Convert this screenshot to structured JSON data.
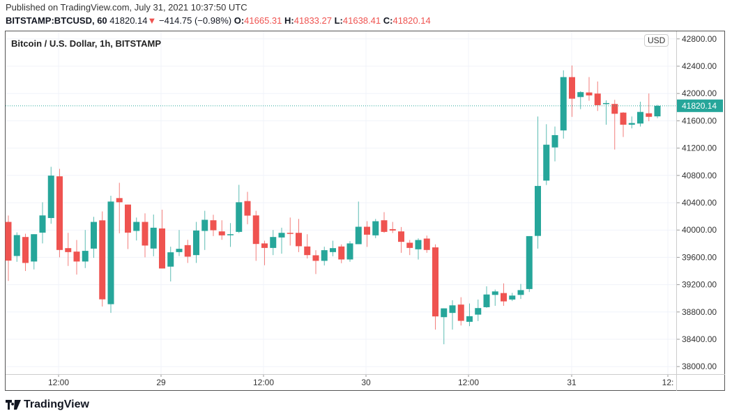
{
  "header": {
    "published": "Published on TradingView.com, July 31, 2021 10:37:50 UTC",
    "symbol": "BITSTAMP:BTCUSD, 60",
    "last": "41820.14",
    "change": "−414.75 (−0.98%)",
    "o_label": "O:",
    "o": "41665.31",
    "h_label": "H:",
    "h": "41833.27",
    "l_label": "L:",
    "l": "41638.41",
    "c_label": "C:",
    "c": "41820.14"
  },
  "chart_title": "Bitcoin / U.S. Dollar, 1h, BITSTAMP",
  "currency": "USD",
  "brand": "TradingView",
  "colors": {
    "up": "#26a69a",
    "down": "#ef5350",
    "last_price": "#26a69a"
  },
  "chart_data": {
    "type": "candlestick",
    "interval": "1h",
    "ylim": [
      37900,
      42900
    ],
    "y_ticks": [
      "42800.00",
      "42400.00",
      "42000.00",
      "41600.00",
      "41200.00",
      "40800.00",
      "40400.00",
      "40000.00",
      "39600.00",
      "39200.00",
      "38800.00",
      "38400.00",
      "38000.00"
    ],
    "x_ticks": [
      "12:00",
      "29",
      "12:00",
      "30",
      "12:00",
      "31",
      "12:"
    ],
    "last_price_label": "41820.14",
    "grid": true,
    "ohlc": [
      [
        40119,
        40213,
        39254,
        39552
      ],
      [
        39620,
        39966,
        39535,
        39926
      ],
      [
        39898,
        39946,
        39400,
        39518
      ],
      [
        39539,
        39939,
        39423,
        39939
      ],
      [
        39962,
        40407,
        39804,
        40214
      ],
      [
        40176,
        40926,
        40092,
        40797
      ],
      [
        40787,
        40896,
        39600,
        39708
      ],
      [
        39735,
        39959,
        39474,
        39677
      ],
      [
        39684,
        39854,
        39348,
        39539
      ],
      [
        39539,
        40000,
        39443,
        39695
      ],
      [
        39728,
        40193,
        39593,
        40119
      ],
      [
        40142,
        40272,
        38880,
        38985
      ],
      [
        38914,
        40502,
        38786,
        40417
      ],
      [
        40468,
        40692,
        39952,
        40407
      ],
      [
        40373,
        40373,
        39722,
        39962
      ],
      [
        39987,
        40183,
        39847,
        40119
      ],
      [
        40119,
        40244,
        39600,
        39773
      ],
      [
        39729,
        40227,
        39616,
        40034
      ],
      [
        40023,
        40298,
        39437,
        39437
      ],
      [
        39464,
        39756,
        39247,
        39674
      ],
      [
        39677,
        40000,
        39620,
        39725
      ],
      [
        39779,
        39857,
        39518,
        39610
      ],
      [
        39633,
        40119,
        39518,
        39993
      ],
      [
        39987,
        40282,
        39708,
        40150
      ],
      [
        40143,
        40224,
        39911,
        39997
      ],
      [
        39980,
        40143,
        39857,
        39922
      ],
      [
        39926,
        40102,
        39753,
        39939
      ],
      [
        39973,
        40662,
        39956,
        40407
      ],
      [
        40424,
        40560,
        40085,
        40211
      ],
      [
        40214,
        40282,
        39549,
        39796
      ],
      [
        39804,
        39844,
        39484,
        39738
      ],
      [
        39738,
        40000,
        39633,
        39898
      ],
      [
        39891,
        40034,
        39654,
        39959
      ],
      [
        39959,
        40183,
        39773,
        39949
      ],
      [
        39959,
        40163,
        39677,
        39763
      ],
      [
        39759,
        39939,
        39583,
        39633
      ],
      [
        39630,
        39705,
        39355,
        39549
      ],
      [
        39549,
        39756,
        39481,
        39705
      ],
      [
        39677,
        39844,
        39616,
        39735
      ],
      [
        39759,
        39790,
        39514,
        39569
      ],
      [
        39569,
        39837,
        39535,
        39804
      ],
      [
        39793,
        40417,
        39793,
        40048
      ],
      [
        40048,
        40129,
        39753,
        39932
      ],
      [
        39922,
        40163,
        39881,
        40129
      ],
      [
        40143,
        40262,
        39959,
        39973
      ],
      [
        40013,
        40119,
        39956,
        39993
      ],
      [
        39980,
        40044,
        39667,
        39827
      ],
      [
        39814,
        39854,
        39633,
        39738
      ],
      [
        39718,
        39878,
        39569,
        39854
      ],
      [
        39875,
        39919,
        39667,
        39708
      ],
      [
        39746,
        39790,
        38541,
        38735
      ],
      [
        38724,
        38853,
        38327,
        38853
      ],
      [
        38786,
        38972,
        38541,
        38897
      ],
      [
        38908,
        39016,
        38602,
        38670
      ],
      [
        38656,
        38924,
        38592,
        38738
      ],
      [
        38761,
        38982,
        38667,
        38857
      ],
      [
        38870,
        39175,
        38860,
        39056
      ],
      [
        39050,
        39128,
        38890,
        39101
      ],
      [
        39077,
        39219,
        38890,
        38955
      ],
      [
        38982,
        39080,
        38960,
        39040
      ],
      [
        39050,
        39210,
        38990,
        39120
      ],
      [
        39136,
        39911,
        39092,
        39911
      ],
      [
        39914,
        41663,
        39728,
        40646
      ],
      [
        40724,
        41550,
        40659,
        41250
      ],
      [
        41210,
        41516,
        41006,
        41390
      ],
      [
        41459,
        42339,
        41339,
        42240
      ],
      [
        42240,
        42410,
        41658,
        41924
      ],
      [
        41948,
        42033,
        41771,
        42020
      ],
      [
        42015,
        42240,
        41893,
        41972
      ],
      [
        41999,
        42176,
        41744,
        41829
      ],
      [
        41846,
        41900,
        41543,
        41860
      ],
      [
        41846,
        41907,
        41179,
        41703
      ],
      [
        41720,
        41727,
        41363,
        41543
      ],
      [
        41543,
        41663,
        41489,
        41567
      ],
      [
        41560,
        41880,
        41516,
        41730
      ],
      [
        41710,
        42000,
        41594,
        41658
      ],
      [
        41665.31,
        41833.27,
        41638.41,
        41820.14
      ]
    ]
  }
}
